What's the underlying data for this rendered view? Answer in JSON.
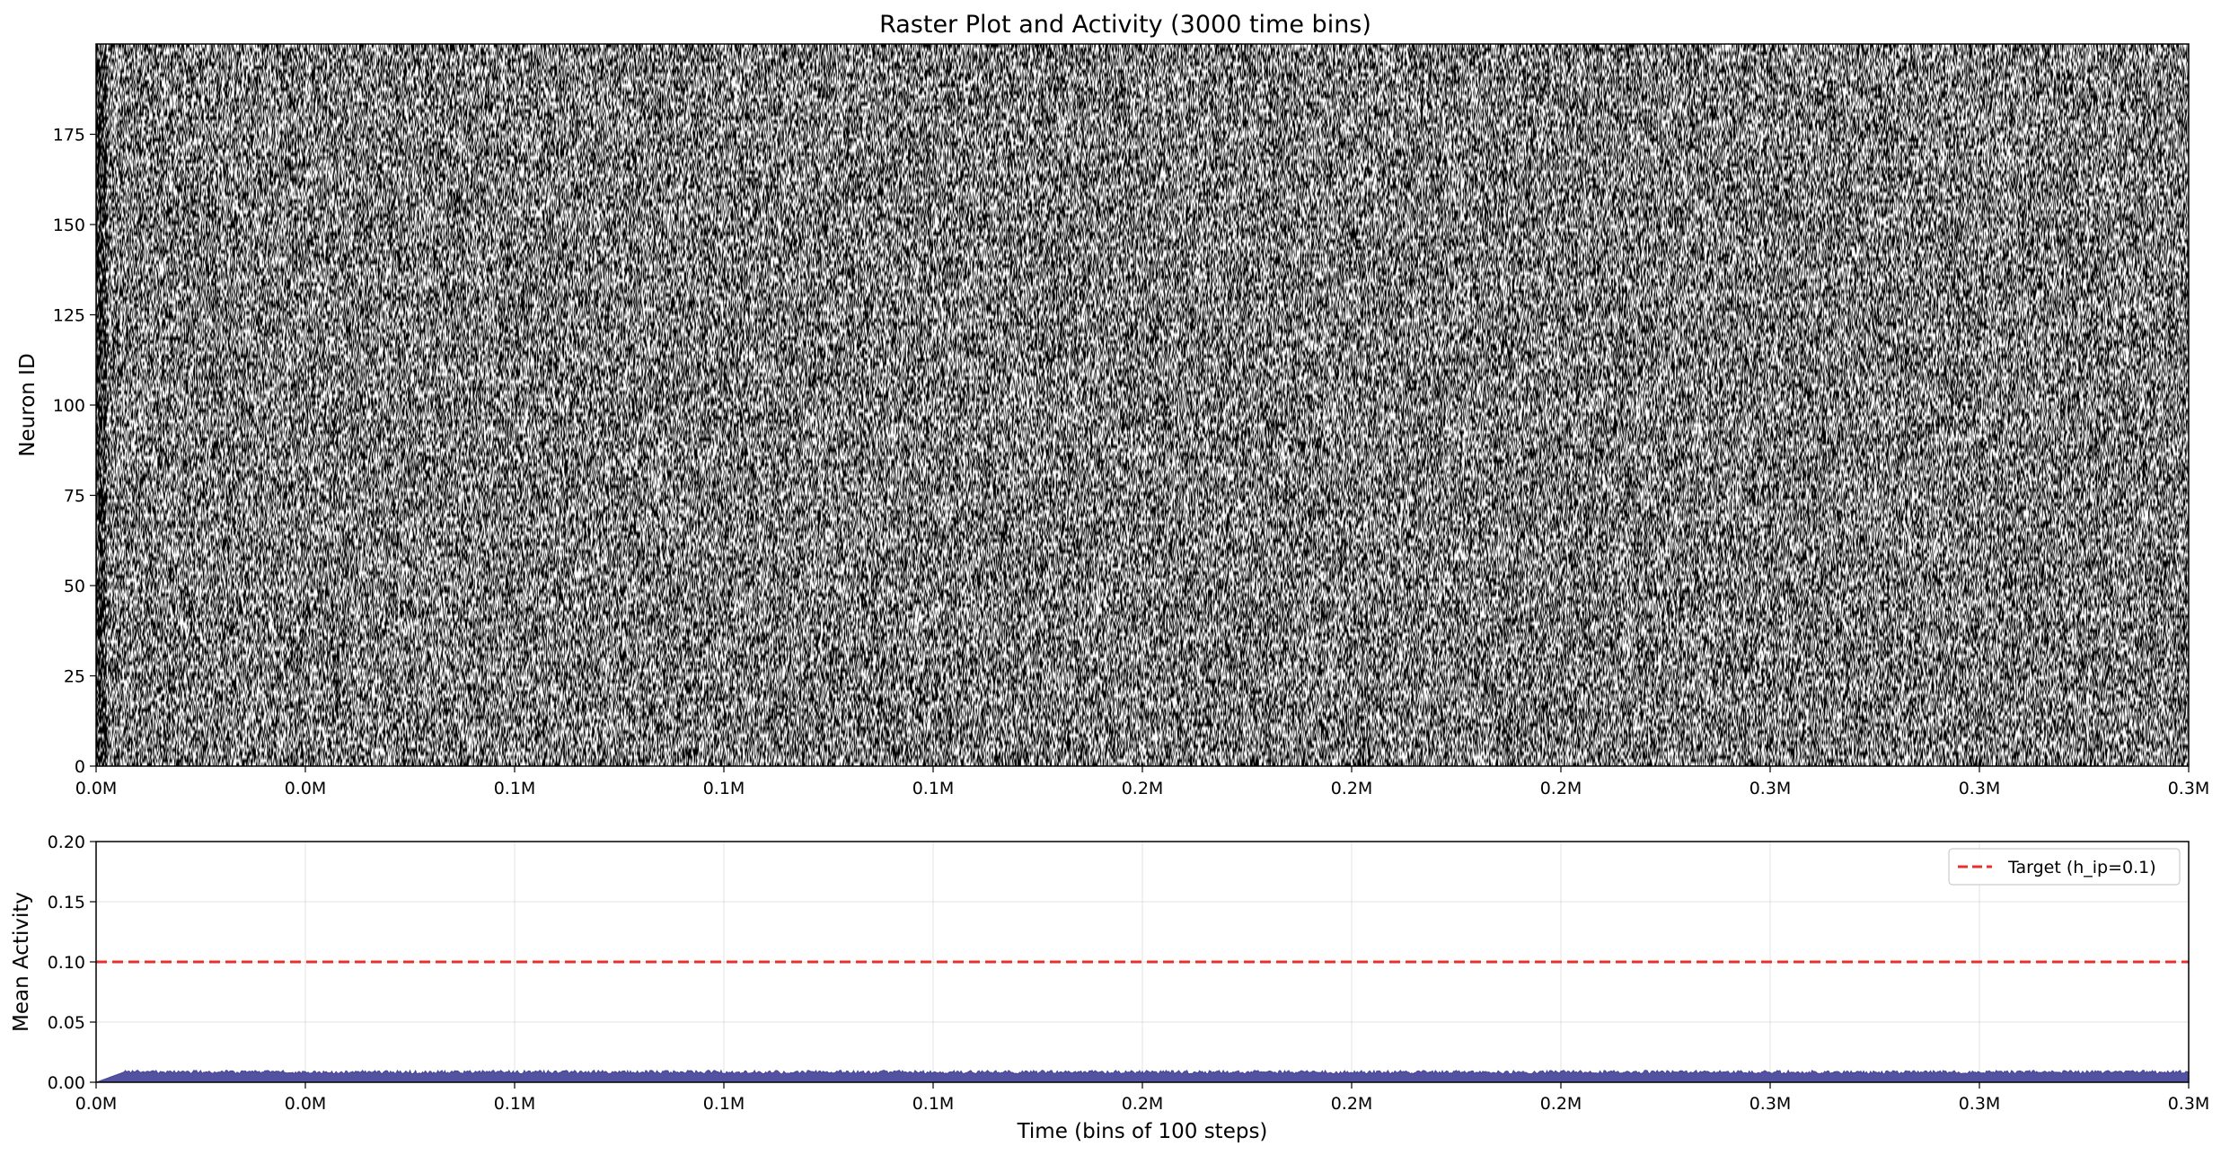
{
  "chart_data": [
    {
      "type": "heatmap",
      "title": "Raster Plot and Activity (3000 time bins)",
      "xlabel": "",
      "ylabel": "Neuron ID",
      "xlim": [
        0,
        3000
      ],
      "ylim": [
        0,
        200
      ],
      "n_neurons": 200,
      "n_time_bins": 3000,
      "colormap": [
        "#ffffff",
        "#000000"
      ],
      "description_values": {
        "mean_fraction_active_initial": 0.75,
        "mean_fraction_active_steady": 0.5
      },
      "x_tick_values": [
        0,
        300,
        600,
        900,
        1200,
        1500,
        1800,
        2100,
        2400,
        2700,
        3000
      ],
      "x_tick_labels": [
        "0.0M",
        "0.0M",
        "0.1M",
        "0.1M",
        "0.1M",
        "0.2M",
        "0.2M",
        "0.2M",
        "0.3M",
        "0.3M",
        "0.3M"
      ],
      "y_tick_values": [
        0,
        25,
        50,
        75,
        100,
        125,
        150,
        175
      ],
      "y_tick_labels": [
        "0",
        "25",
        "50",
        "75",
        "100",
        "125",
        "150",
        "175"
      ]
    },
    {
      "type": "area",
      "title": "",
      "xlabel": "Time (bins of 100 steps)",
      "ylabel": "Mean Activity",
      "xlim": [
        0,
        3000
      ],
      "ylim": [
        0,
        0.2
      ],
      "grid": true,
      "legend_position": "top-right",
      "series": [
        {
          "name": "",
          "color": "#3f3f97",
          "ramp": {
            "x": [
              0,
              40,
              3000
            ],
            "y": [
              0.0,
              0.0085,
              0.0085
            ]
          },
          "noise_amplitude": 0.0015
        },
        {
          "name": "Target (h_ip=0.1)",
          "color": "#e8302f",
          "style": "dashed",
          "value": 0.1
        }
      ],
      "x_tick_values": [
        0,
        300,
        600,
        900,
        1200,
        1500,
        1800,
        2100,
        2400,
        2700,
        3000
      ],
      "x_tick_labels": [
        "0.0M",
        "0.0M",
        "0.1M",
        "0.1M",
        "0.1M",
        "0.2M",
        "0.2M",
        "0.2M",
        "0.3M",
        "0.3M",
        "0.3M"
      ],
      "y_tick_values": [
        0,
        0.05,
        0.1,
        0.15,
        0.2
      ],
      "y_tick_labels": [
        "0.00",
        "0.05",
        "0.10",
        "0.15",
        "0.20"
      ]
    }
  ]
}
